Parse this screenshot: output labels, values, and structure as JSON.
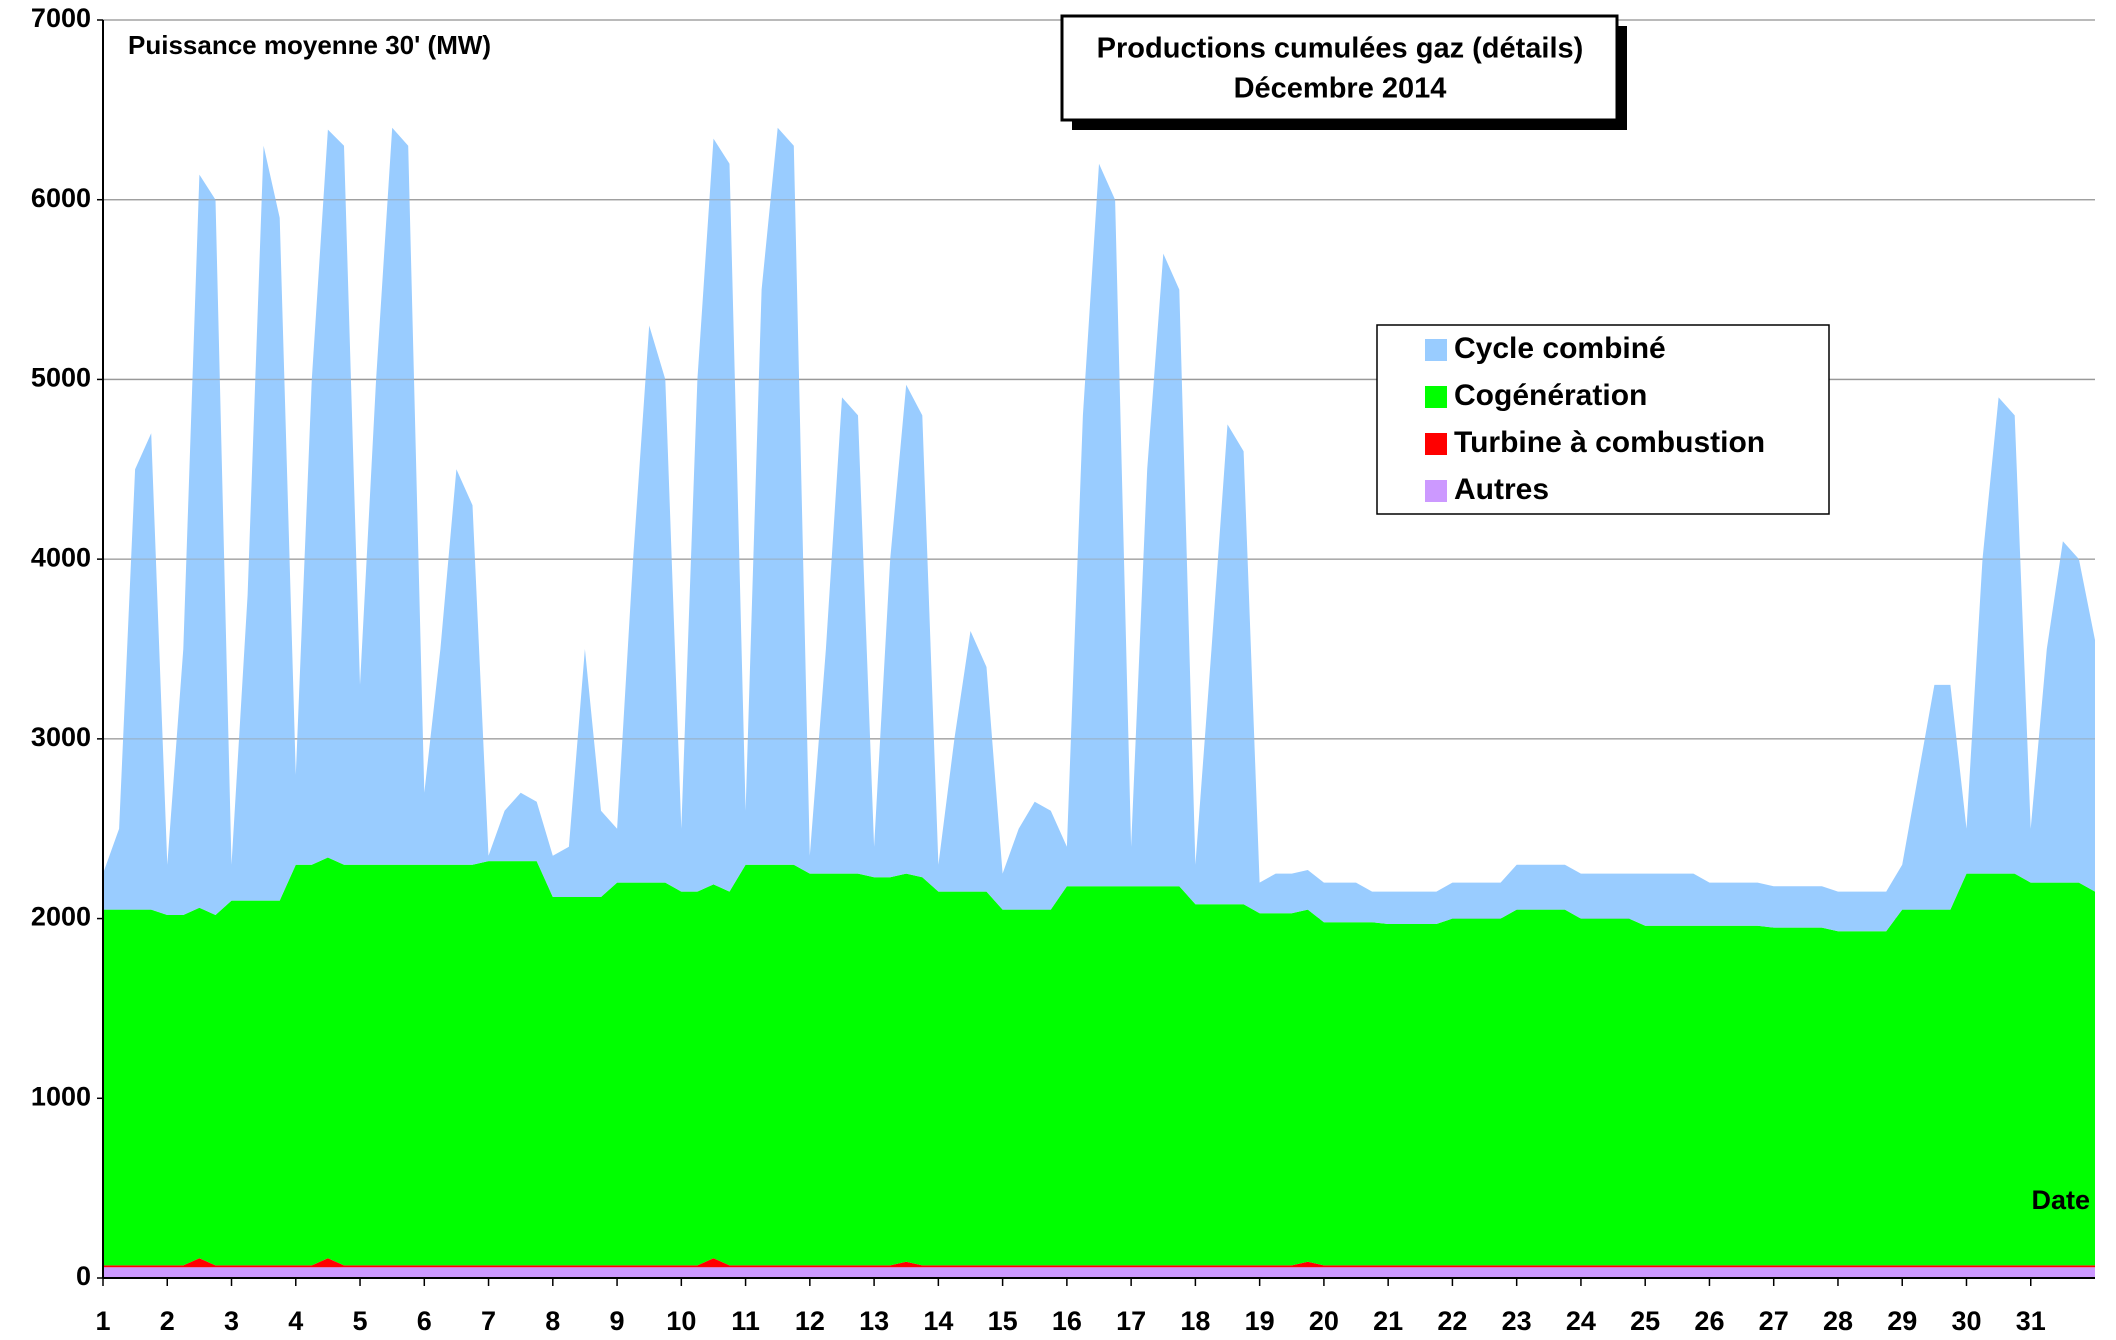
{
  "chart_data": {
    "type": "stacked_area",
    "title": "Productions cumulées gaz (détails)",
    "subtitle": "Décembre 2014",
    "ylabel": "Puissance moyenne 30' (MW)",
    "xlabel": "Date",
    "xlim": [
      1,
      32
    ],
    "xticks": [
      1,
      2,
      3,
      4,
      5,
      6,
      7,
      8,
      9,
      10,
      11,
      12,
      13,
      14,
      15,
      16,
      17,
      18,
      19,
      20,
      21,
      22,
      23,
      24,
      25,
      26,
      27,
      28,
      29,
      30,
      31
    ],
    "ylim": [
      0,
      7000
    ],
    "yticks": [
      0,
      1000,
      2000,
      3000,
      4000,
      5000,
      6000,
      7000
    ],
    "grid": true,
    "legend": "upper right",
    "x": [
      1,
      1.25,
      1.5,
      1.75,
      2,
      2.25,
      2.5,
      2.75,
      3,
      3.25,
      3.5,
      3.75,
      4,
      4.25,
      4.5,
      4.75,
      5,
      5.25,
      5.5,
      5.75,
      6,
      6.25,
      6.5,
      6.75,
      7,
      7.25,
      7.5,
      7.75,
      8,
      8.25,
      8.5,
      8.75,
      9,
      9.25,
      9.5,
      9.75,
      10,
      10.25,
      10.5,
      10.75,
      11,
      11.25,
      11.5,
      11.75,
      12,
      12.25,
      12.5,
      12.75,
      13,
      13.25,
      13.5,
      13.75,
      14,
      14.25,
      14.5,
      14.75,
      15,
      15.25,
      15.5,
      15.75,
      16,
      16.25,
      16.5,
      16.75,
      17,
      17.25,
      17.5,
      17.75,
      18,
      18.25,
      18.5,
      18.75,
      19,
      19.25,
      19.5,
      19.75,
      20,
      20.25,
      20.5,
      20.75,
      21,
      21.25,
      21.5,
      21.75,
      22,
      22.25,
      22.5,
      22.75,
      23,
      23.25,
      23.5,
      23.75,
      24,
      24.25,
      24.5,
      24.75,
      25,
      25.25,
      25.5,
      25.75,
      26,
      26.25,
      26.5,
      26.75,
      27,
      27.25,
      27.5,
      27.75,
      28,
      28.25,
      28.5,
      28.75,
      29,
      29.25,
      29.5,
      29.75,
      30,
      30.25,
      30.5,
      30.75,
      31,
      31.25,
      31.5,
      31.75,
      32
    ],
    "series": [
      {
        "name": "Cycle combiné",
        "color": "#99ccff",
        "values": [
          200,
          450,
          2450,
          2650,
          280,
          1480,
          4080,
          3980,
          200,
          1700,
          4200,
          3800,
          500,
          2700,
          4050,
          4000,
          1000,
          2700,
          4100,
          4000,
          400,
          1200,
          2200,
          2000,
          30,
          280,
          380,
          330,
          230,
          280,
          1380,
          480,
          300,
          1800,
          3100,
          2800,
          350,
          2850,
          4150,
          4050,
          300,
          3200,
          4100,
          4000,
          100,
          1250,
          2650,
          2550,
          170,
          1770,
          2720,
          2570,
          150,
          850,
          1450,
          1250,
          200,
          450,
          600,
          550,
          220,
          2620,
          4020,
          3820,
          220,
          2320,
          3520,
          3320,
          220,
          1420,
          2670,
          2520,
          170,
          220,
          220,
          220,
          220,
          220,
          220,
          170,
          180,
          180,
          180,
          180,
          200,
          200,
          200,
          200,
          250,
          250,
          250,
          250,
          250,
          250,
          250,
          250,
          290,
          290,
          290,
          290,
          240,
          240,
          240,
          240,
          230,
          230,
          230,
          230,
          220,
          220,
          220,
          220,
          250,
          750,
          1250,
          1250,
          250,
          1750,
          2650,
          2550,
          300,
          1300,
          1900,
          1800,
          1400
        ]
      },
      {
        "name": "Cogénération",
        "color": "#00ff00",
        "values": [
          1980,
          1980,
          1980,
          1980,
          1950,
          1950,
          1950,
          1950,
          2030,
          2030,
          2030,
          2030,
          2230,
          2230,
          2230,
          2230,
          2230,
          2230,
          2230,
          2230,
          2230,
          2230,
          2230,
          2230,
          2250,
          2250,
          2250,
          2250,
          2050,
          2050,
          2050,
          2050,
          2130,
          2130,
          2130,
          2130,
          2080,
          2080,
          2080,
          2080,
          2230,
          2230,
          2230,
          2230,
          2180,
          2180,
          2180,
          2180,
          2160,
          2160,
          2160,
          2160,
          2080,
          2080,
          2080,
          2080,
          1980,
          1980,
          1980,
          1980,
          2110,
          2110,
          2110,
          2110,
          2110,
          2110,
          2110,
          2110,
          2010,
          2010,
          2010,
          2010,
          1960,
          1960,
          1960,
          1960,
          1910,
          1910,
          1910,
          1910,
          1900,
          1900,
          1900,
          1900,
          1930,
          1930,
          1930,
          1930,
          1980,
          1980,
          1980,
          1980,
          1930,
          1930,
          1930,
          1930,
          1890,
          1890,
          1890,
          1890,
          1890,
          1890,
          1890,
          1890,
          1880,
          1880,
          1880,
          1880,
          1860,
          1860,
          1860,
          1860,
          1980,
          1980,
          1980,
          1980,
          2180,
          2180,
          2180,
          2180,
          2130,
          2130,
          2130,
          2130,
          2080
        ]
      },
      {
        "name": "Turbine à combustion",
        "color": "#ff0000",
        "values": [
          10,
          10,
          10,
          10,
          10,
          10,
          50,
          10,
          10,
          10,
          10,
          10,
          10,
          10,
          50,
          10,
          10,
          10,
          10,
          10,
          10,
          10,
          10,
          10,
          10,
          10,
          10,
          10,
          10,
          10,
          10,
          10,
          10,
          10,
          10,
          10,
          10,
          10,
          50,
          10,
          10,
          10,
          10,
          10,
          10,
          10,
          10,
          10,
          10,
          10,
          30,
          10,
          10,
          10,
          10,
          10,
          10,
          10,
          10,
          10,
          10,
          10,
          10,
          10,
          10,
          10,
          10,
          10,
          10,
          10,
          10,
          10,
          10,
          10,
          10,
          30,
          10,
          10,
          10,
          10,
          10,
          10,
          10,
          10,
          10,
          10,
          10,
          10,
          10,
          10,
          10,
          10,
          10,
          10,
          10,
          10,
          10,
          10,
          10,
          10,
          10,
          10,
          10,
          10,
          10,
          10,
          10,
          10,
          10,
          10,
          10,
          10,
          10,
          10,
          10,
          10,
          10,
          10,
          10,
          10,
          10,
          10,
          10,
          10,
          10
        ]
      },
      {
        "name": "Autres",
        "color": "#cc99ff",
        "values": [
          60,
          60,
          60,
          60,
          60,
          60,
          60,
          60,
          60,
          60,
          60,
          60,
          60,
          60,
          60,
          60,
          60,
          60,
          60,
          60,
          60,
          60,
          60,
          60,
          60,
          60,
          60,
          60,
          60,
          60,
          60,
          60,
          60,
          60,
          60,
          60,
          60,
          60,
          60,
          60,
          60,
          60,
          60,
          60,
          60,
          60,
          60,
          60,
          60,
          60,
          60,
          60,
          60,
          60,
          60,
          60,
          60,
          60,
          60,
          60,
          60,
          60,
          60,
          60,
          60,
          60,
          60,
          60,
          60,
          60,
          60,
          60,
          60,
          60,
          60,
          60,
          60,
          60,
          60,
          60,
          60,
          60,
          60,
          60,
          60,
          60,
          60,
          60,
          60,
          60,
          60,
          60,
          60,
          60,
          60,
          60,
          60,
          60,
          60,
          60,
          60,
          60,
          60,
          60,
          60,
          60,
          60,
          60,
          60,
          60,
          60,
          60,
          60,
          60,
          60,
          60,
          60,
          60,
          60,
          60,
          60,
          60,
          60,
          60,
          60
        ]
      }
    ]
  }
}
